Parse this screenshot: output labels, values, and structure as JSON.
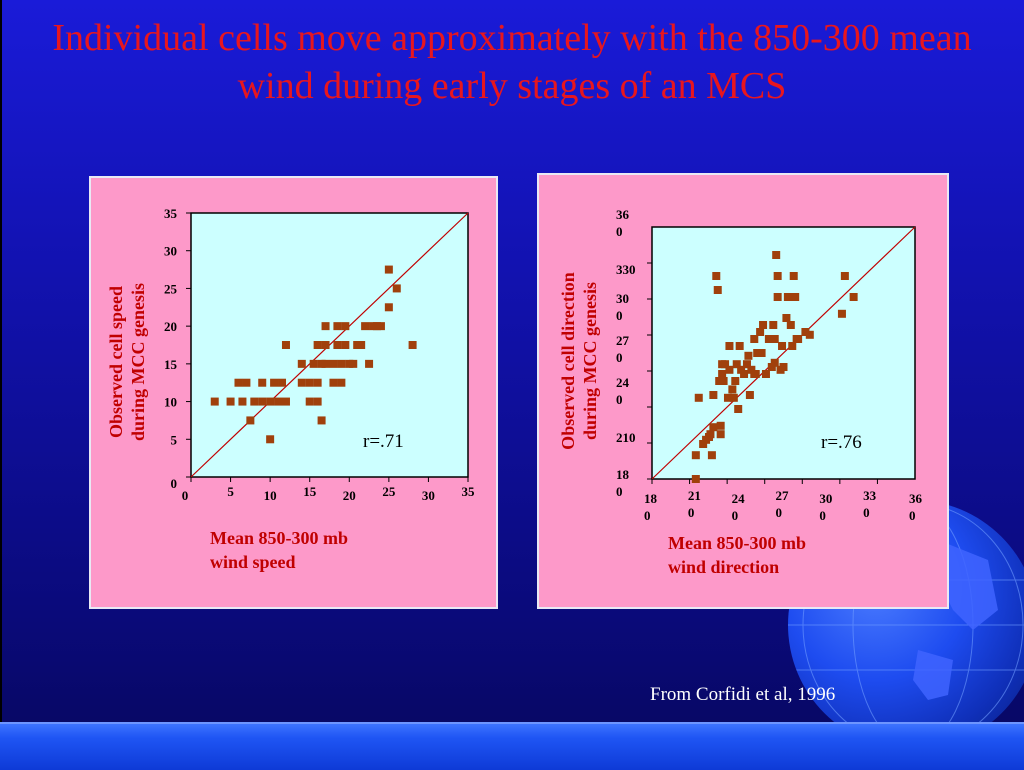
{
  "title": "Individual cells move approximately with the 850-300 mean wind during early stages of an MCS",
  "credit": "From Corfidi et al, 1996",
  "colors": {
    "title": "#e8161e",
    "panel_bg": "#fd99c9",
    "plot_bg": "#ccffff",
    "marker": "#a0400c",
    "fit_line": "#c00000",
    "axis_label": "#c00000"
  },
  "chart_data": [
    {
      "type": "scatter",
      "ylabel_lines": [
        "Observed cell speed",
        "during MCC genesis"
      ],
      "xlabel_lines": [
        "Mean 850-300 mb",
        "wind speed"
      ],
      "xlim": [
        0,
        35
      ],
      "ylim": [
        0,
        35
      ],
      "x_ticks": [
        "0",
        "5",
        "10",
        "15",
        "20",
        "25",
        "30",
        "35"
      ],
      "y_ticks": [
        "0",
        "5",
        "10",
        "15",
        "20",
        "25",
        "30",
        "35"
      ],
      "annotation": "r=.71",
      "reference_line": [
        [
          0,
          0
        ],
        [
          35,
          35
        ]
      ],
      "points": [
        [
          3,
          10
        ],
        [
          5,
          10
        ],
        [
          6,
          12.5
        ],
        [
          6.5,
          10
        ],
        [
          7,
          12.5
        ],
        [
          7.5,
          7.5
        ],
        [
          8,
          10
        ],
        [
          9,
          10
        ],
        [
          9,
          12.5
        ],
        [
          10,
          5
        ],
        [
          10,
          10
        ],
        [
          10.5,
          12.5
        ],
        [
          11,
          10
        ],
        [
          11.5,
          12.5
        ],
        [
          12,
          10
        ],
        [
          12,
          17.5
        ],
        [
          14,
          12.5
        ],
        [
          14,
          15
        ],
        [
          15,
          10
        ],
        [
          15,
          12.5
        ],
        [
          15.5,
          15
        ],
        [
          16,
          10
        ],
        [
          16,
          12.5
        ],
        [
          16,
          17.5
        ],
        [
          16.5,
          7.5
        ],
        [
          16.5,
          15
        ],
        [
          17,
          15
        ],
        [
          17,
          20
        ],
        [
          17,
          17.5
        ],
        [
          18,
          15
        ],
        [
          18,
          12.5
        ],
        [
          18.5,
          17.5
        ],
        [
          18.5,
          20
        ],
        [
          19,
          12.5
        ],
        [
          19,
          15
        ],
        [
          19.5,
          17.5
        ],
        [
          19.5,
          20
        ],
        [
          20,
          15
        ],
        [
          20.5,
          15
        ],
        [
          21,
          17.5
        ],
        [
          21.5,
          17.5
        ],
        [
          22,
          20
        ],
        [
          22.5,
          15
        ],
        [
          23,
          20
        ],
        [
          23.5,
          20
        ],
        [
          24,
          20
        ],
        [
          25,
          27.5
        ],
        [
          25,
          22.5
        ],
        [
          26,
          25
        ],
        [
          28,
          17.5
        ]
      ]
    },
    {
      "type": "scatter",
      "ylabel_lines": [
        "Observed cell direction",
        "during MCC genesis"
      ],
      "xlabel_lines": [
        "Mean 850-300 mb",
        "wind direction"
      ],
      "xlim": [
        180,
        360
      ],
      "ylim": [
        180,
        360
      ],
      "x_tick_labels": [
        [
          "18",
          "0"
        ],
        [
          "21",
          "0"
        ],
        [
          "24",
          "0"
        ],
        [
          "27",
          "0"
        ],
        [
          "30",
          "0"
        ],
        [
          "33",
          "0"
        ],
        [
          "36",
          "0"
        ]
      ],
      "y_tick_labels": [
        [
          "18",
          "0"
        ],
        [
          "210"
        ],
        [
          "24",
          "0"
        ],
        [
          "27",
          "0"
        ],
        [
          "30",
          "0"
        ],
        [
          "330"
        ],
        [
          "36",
          "0"
        ]
      ],
      "annotation": "r=.76",
      "reference_line": [
        [
          180,
          180
        ],
        [
          360,
          360
        ]
      ],
      "points": [
        [
          210,
          180
        ],
        [
          210,
          197
        ],
        [
          212,
          238
        ],
        [
          215,
          205
        ],
        [
          217,
          208
        ],
        [
          219,
          210
        ],
        [
          220,
          212
        ],
        [
          221,
          197
        ],
        [
          222,
          217
        ],
        [
          222,
          240
        ],
        [
          224,
          325
        ],
        [
          225,
          315
        ],
        [
          226,
          250
        ],
        [
          227,
          212
        ],
        [
          227,
          218
        ],
        [
          228,
          255
        ],
        [
          228,
          262
        ],
        [
          229,
          250
        ],
        [
          230,
          262
        ],
        [
          232,
          238
        ],
        [
          233,
          258
        ],
        [
          233,
          275
        ],
        [
          235,
          244
        ],
        [
          236,
          238
        ],
        [
          237,
          250
        ],
        [
          238,
          262
        ],
        [
          239,
          230
        ],
        [
          240,
          275
        ],
        [
          241,
          258
        ],
        [
          243,
          255
        ],
        [
          245,
          262
        ],
        [
          246,
          268
        ],
        [
          247,
          240
        ],
        [
          248,
          258
        ],
        [
          250,
          255
        ],
        [
          250,
          280
        ],
        [
          251,
          255
        ],
        [
          252,
          270
        ],
        [
          254,
          285
        ],
        [
          255,
          270
        ],
        [
          256,
          290
        ],
        [
          258,
          255
        ],
        [
          260,
          280
        ],
        [
          262,
          260
        ],
        [
          263,
          290
        ],
        [
          264,
          263
        ],
        [
          264,
          280
        ],
        [
          265,
          340
        ],
        [
          266,
          310
        ],
        [
          266,
          325
        ],
        [
          268,
          258
        ],
        [
          269,
          275
        ],
        [
          270,
          260
        ],
        [
          272,
          295
        ],
        [
          273,
          310
        ],
        [
          275,
          290
        ],
        [
          276,
          275
        ],
        [
          277,
          325
        ],
        [
          278,
          310
        ],
        [
          279,
          280
        ],
        [
          280,
          280
        ],
        [
          285,
          285
        ],
        [
          288,
          283
        ],
        [
          310,
          298
        ],
        [
          312,
          325
        ],
        [
          318,
          310
        ]
      ]
    }
  ]
}
